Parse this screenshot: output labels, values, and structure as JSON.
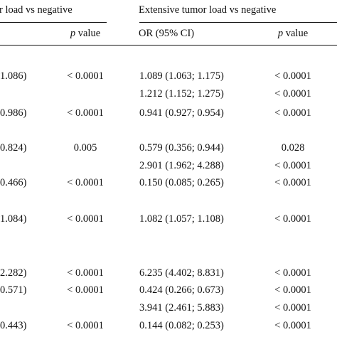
{
  "header": {
    "group_left": "r load vs negative",
    "group_right": "Extensive tumor load vs negative",
    "col_p_left_italic": "p",
    "col_p_left_rest": " value",
    "col_or_right": "OR (95% CI)",
    "col_p_right_italic": "p",
    "col_p_right_rest": " value"
  },
  "rows": [
    {
      "ci_left": "1.086)",
      "p_left": "< 0.0001",
      "or_right": "1.089 (1.063; 1.175)",
      "p_right": "< 0.0001"
    },
    {
      "ci_left": "",
      "p_left": "",
      "or_right": "1.212 (1.152; 1.275)",
      "p_right": "< 0.0001"
    },
    {
      "ci_left": "0.986)",
      "p_left": "< 0.0001",
      "or_right": "0.941 (0.927; 0.954)",
      "p_right": "< 0.0001"
    },
    {
      "ci_left": "0.824)",
      "p_left": "0.005",
      "or_right": "0.579 (0.356; 0.944)",
      "p_right": "0.028"
    },
    {
      "ci_left": "",
      "p_left": "",
      "or_right": "2.901 (1.962; 4.288)",
      "p_right": "< 0.0001"
    },
    {
      "ci_left": "0.466)",
      "p_left": "< 0.0001",
      "or_right": "0.150 (0.085; 0.265)",
      "p_right": "< 0.0001"
    },
    {
      "ci_left": "1.084)",
      "p_left": "< 0.0001",
      "or_right": "1.082 (1.057; 1.108)",
      "p_right": "< 0.0001"
    },
    {
      "ci_left": "2.282)",
      "p_left": "< 0.0001",
      "or_right": "6.235 (4.402; 8.831)",
      "p_right": "< 0.0001"
    },
    {
      "ci_left": "0.571)",
      "p_left": "< 0.0001",
      "or_right": "0.424 (0.266; 0.673)",
      "p_right": "< 0.0001"
    },
    {
      "ci_left": "",
      "p_left": "",
      "or_right": "3.941 (2.461; 5.883)",
      "p_right": "< 0.0001"
    },
    {
      "ci_left": "0.443)",
      "p_left": "< 0.0001",
      "or_right": "0.144 (0.082; 0.253)",
      "p_right": "< 0.0001"
    }
  ]
}
